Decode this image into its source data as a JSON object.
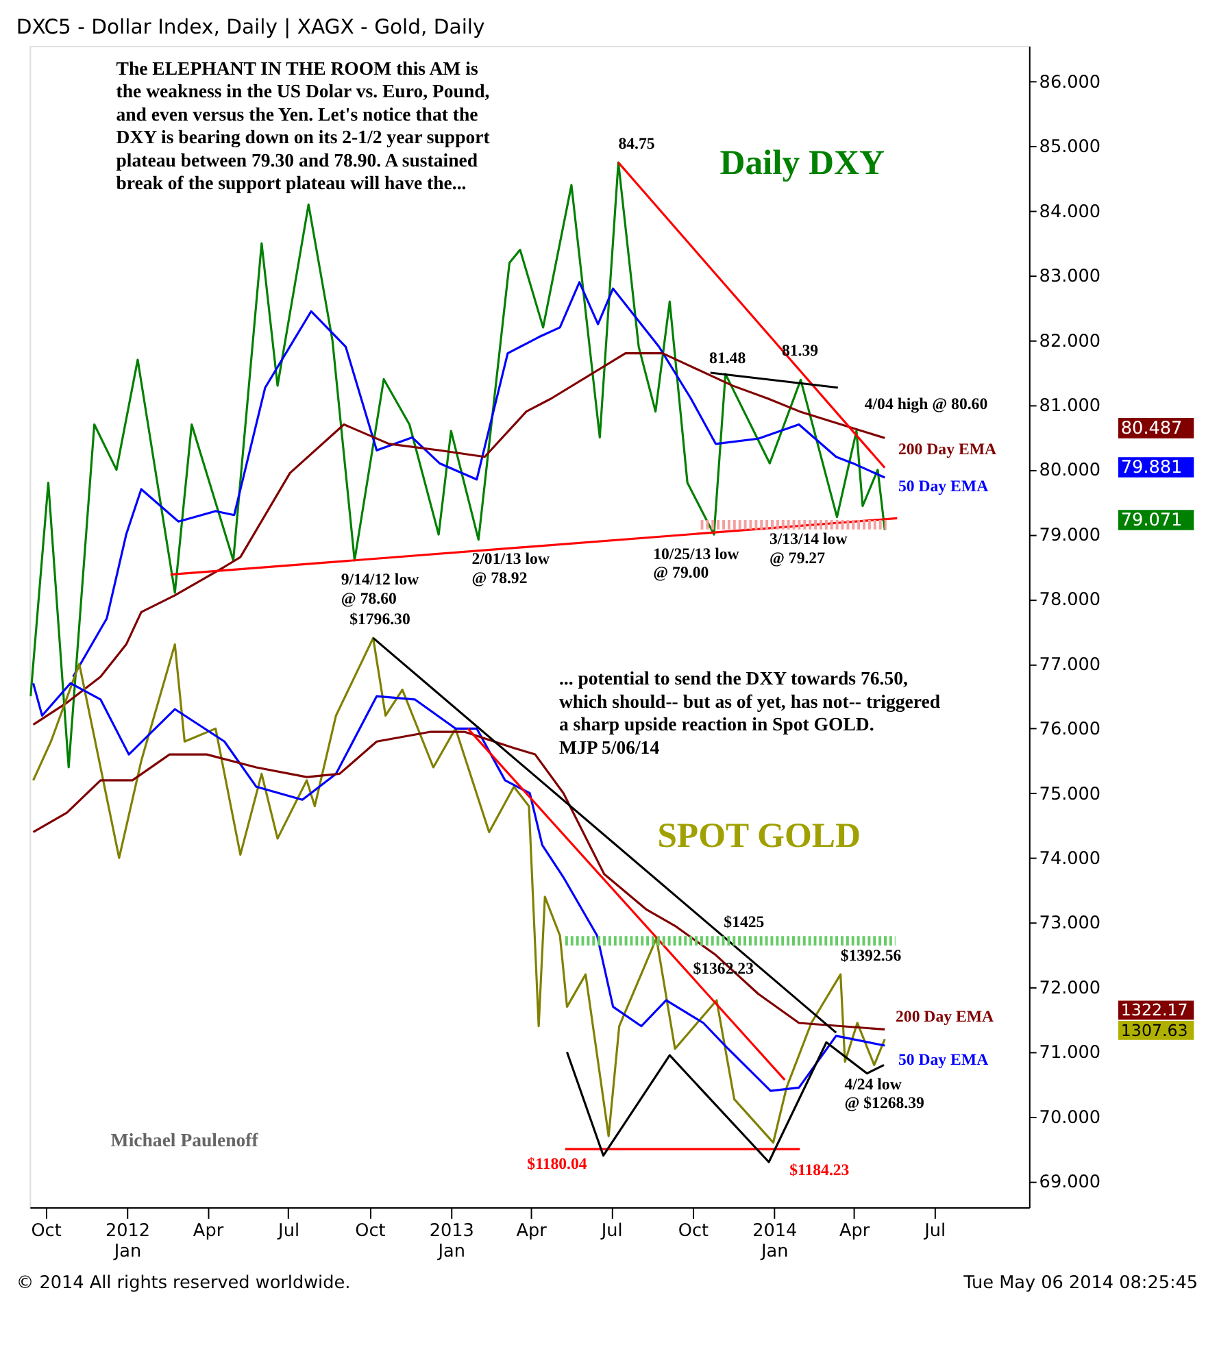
{
  "chart_data": {
    "type": "line",
    "title": "DXC5 - Dollar Index, Daily  |  XAGX - Gold, Daily",
    "xlim": [
      "2011-09-13",
      "2014-10-16"
    ],
    "xticks": [
      {
        "value": "2011-10-01",
        "label": "Oct"
      },
      {
        "value": "2012-01-01",
        "label": "2012\nJan"
      },
      {
        "value": "2012-04-01",
        "label": "Apr"
      },
      {
        "value": "2012-07-01",
        "label": "Jul"
      },
      {
        "value": "2012-10-01",
        "label": "Oct"
      },
      {
        "value": "2013-01-01",
        "label": "2013\nJan"
      },
      {
        "value": "2013-04-01",
        "label": "Apr"
      },
      {
        "value": "2013-07-01",
        "label": "Jul"
      },
      {
        "value": "2013-10-01",
        "label": "Oct"
      },
      {
        "value": "2014-01-01",
        "label": "2014\nJan"
      },
      {
        "value": "2014-04-01",
        "label": "Apr"
      },
      {
        "value": "2014-07-01",
        "label": "Jul"
      }
    ],
    "ylim": [
      68.6,
      86.55
    ],
    "yticks": [
      {
        "value": 69,
        "label": "69.000"
      },
      {
        "value": 70,
        "label": "70.000"
      },
      {
        "value": 71,
        "label": "71.000"
      },
      {
        "value": 72,
        "label": "72.000"
      },
      {
        "value": 73,
        "label": "73.000"
      },
      {
        "value": 74,
        "label": "74.000"
      },
      {
        "value": 75,
        "label": "75.000"
      },
      {
        "value": 76,
        "label": "76.000"
      },
      {
        "value": 77,
        "label": "77.000"
      },
      {
        "value": 78,
        "label": "78.000"
      },
      {
        "value": 79,
        "label": "79.000"
      },
      {
        "value": 80,
        "label": "80.000"
      },
      {
        "value": 81,
        "label": "81.000"
      },
      {
        "value": 82,
        "label": "82.000"
      },
      {
        "value": 83,
        "label": "83.000"
      },
      {
        "value": 84,
        "label": "84.000"
      },
      {
        "value": 85,
        "label": "85.000"
      },
      {
        "value": 86,
        "label": "86.000"
      }
    ],
    "grid": false,
    "series": [
      {
        "type": "line",
        "color": "#008000",
        "x": [
          "2011-09-14",
          "2011-10-04",
          "2011-10-27",
          "2011-11-25",
          "2011-12-20",
          "2012-01-13",
          "2012-02-24",
          "2012-03-14",
          "2012-04-30",
          "2012-06-01",
          "2012-06-19",
          "2012-07-24",
          "2012-08-20",
          "2012-09-14",
          "2012-10-17",
          "2012-11-15",
          "2012-12-18",
          "2013-01-01",
          "2013-02-01",
          "2013-03-08",
          "2013-03-20",
          "2013-04-15",
          "2013-05-17",
          "2013-06-18",
          "2013-07-09",
          "2013-08-01",
          "2013-08-20",
          "2013-09-05",
          "2013-09-25",
          "2013-10-25",
          "2013-11-07",
          "2013-12-27",
          "2014-01-31",
          "2014-03-13",
          "2014-04-04",
          "2014-04-11",
          "2014-04-28",
          "2014-05-06"
        ],
        "values": [
          76.5,
          79.8,
          75.4,
          80.7,
          80.0,
          81.7,
          78.1,
          80.7,
          78.6,
          83.5,
          81.3,
          84.1,
          82.0,
          78.6,
          81.4,
          80.7,
          79.0,
          80.6,
          78.92,
          83.2,
          83.4,
          82.2,
          84.4,
          80.5,
          84.75,
          81.9,
          80.9,
          82.6,
          79.8,
          79.0,
          81.48,
          80.1,
          81.39,
          79.27,
          80.6,
          79.44,
          80.0,
          79.07
        ]
      },
      {
        "type": "line",
        "color": "#0000ff",
        "x": [
          "2011-11-01",
          "2011-12-09",
          "2011-12-31",
          "2012-01-17",
          "2012-02-28",
          "2012-04-10",
          "2012-05-01",
          "2012-06-05",
          "2012-07-27",
          "2012-09-04",
          "2012-10-09",
          "2012-11-18",
          "2012-12-19",
          "2013-01-30",
          "2013-03-06",
          "2013-04-10",
          "2013-05-04",
          "2013-05-26",
          "2013-06-16",
          "2013-07-03",
          "2013-08-24",
          "2013-09-29",
          "2013-10-27",
          "2013-12-14",
          "2014-01-29",
          "2014-03-12",
          "2014-03-31",
          "2014-05-06"
        ],
        "values": [
          76.8,
          77.7,
          79.0,
          79.7,
          79.2,
          79.36,
          79.3,
          81.27,
          82.45,
          81.9,
          80.3,
          80.5,
          80.1,
          79.85,
          81.8,
          82.05,
          82.2,
          82.9,
          82.25,
          82.8,
          81.9,
          81.1,
          80.4,
          80.48,
          80.7,
          80.2,
          80.1,
          79.88
        ]
      },
      {
        "type": "line",
        "color": "#800000",
        "x": [
          "2011-09-17",
          "2011-10-25",
          "2011-12-02",
          "2011-12-31",
          "2012-01-17",
          "2012-02-24",
          "2012-04-20",
          "2012-05-08",
          "2012-07-03",
          "2012-09-02",
          "2012-10-23",
          "2012-12-19",
          "2013-02-08",
          "2013-03-27",
          "2013-04-24",
          "2013-07-17",
          "2013-08-28",
          "2013-11-15",
          "2013-12-25",
          "2014-01-30",
          "2014-05-06"
        ],
        "values": [
          76.06,
          76.4,
          76.8,
          77.3,
          77.8,
          78.06,
          78.5,
          78.65,
          79.95,
          80.7,
          80.4,
          80.3,
          80.2,
          80.9,
          81.1,
          81.8,
          81.8,
          81.3,
          81.1,
          80.9,
          80.49
        ]
      },
      {
        "type": "line",
        "color": "#808000",
        "x": [
          "2011-09-17",
          "2011-10-07",
          "2011-11-08",
          "2011-12-23",
          "2012-01-17",
          "2012-02-24",
          "2012-03-06",
          "2012-04-10",
          "2012-05-08",
          "2012-06-01",
          "2012-06-19",
          "2012-07-22",
          "2012-07-31",
          "2012-08-24",
          "2012-10-05",
          "2012-10-19",
          "2012-11-07",
          "2012-12-12",
          "2013-01-06",
          "2013-02-13",
          "2013-03-13",
          "2013-03-30",
          "2013-04-10",
          "2013-04-17",
          "2013-05-04",
          "2013-05-12",
          "2013-06-02",
          "2013-06-28",
          "2013-07-10",
          "2013-08-21",
          "2013-09-11",
          "2013-10-28",
          "2013-11-17",
          "2013-12-31",
          "2014-01-15",
          "2014-02-12",
          "2014-03-17",
          "2014-03-22",
          "2014-04-05",
          "2014-04-24",
          "2014-05-06"
        ],
        "values": [
          75.2,
          75.8,
          77.0,
          74.0,
          75.5,
          77.3,
          75.8,
          76.0,
          74.05,
          75.3,
          74.3,
          75.2,
          74.8,
          76.2,
          77.4,
          76.2,
          76.6,
          75.4,
          76.0,
          74.4,
          75.1,
          74.8,
          71.4,
          73.4,
          72.8,
          71.7,
          72.2,
          69.7,
          71.4,
          72.76,
          71.05,
          71.8,
          70.27,
          69.6,
          70.45,
          71.45,
          72.2,
          70.85,
          71.45,
          70.8,
          71.2
        ]
      },
      {
        "type": "line",
        "color": "#0000ff",
        "x": [
          "2011-09-17",
          "2011-09-27",
          "2011-10-29",
          "2011-12-02",
          "2012-01-03",
          "2012-02-24",
          "2012-04-20",
          "2012-05-26",
          "2012-07-17",
          "2012-08-24",
          "2012-10-09",
          "2012-11-21",
          "2013-01-06",
          "2013-01-30",
          "2013-03-03",
          "2013-03-31",
          "2013-04-14",
          "2013-05-08",
          "2013-06-15",
          "2013-07-03",
          "2013-08-04",
          "2013-09-01",
          "2013-10-13",
          "2013-11-10",
          "2013-12-28",
          "2014-01-29",
          "2014-03-12",
          "2014-05-06"
        ],
        "values": [
          76.7,
          76.2,
          76.7,
          76.45,
          75.6,
          76.3,
          75.8,
          75.1,
          74.9,
          75.3,
          76.5,
          76.45,
          76.0,
          76.0,
          75.2,
          75.0,
          74.2,
          73.7,
          72.8,
          71.7,
          71.4,
          71.8,
          71.45,
          71.05,
          70.4,
          70.45,
          71.25,
          71.1
        ]
      },
      {
        "type": "line",
        "color": "#800000",
        "x": [
          "2011-09-17",
          "2011-10-25",
          "2011-12-02",
          "2012-01-07",
          "2012-02-18",
          "2012-03-31",
          "2012-05-26",
          "2012-07-22",
          "2012-08-28",
          "2012-10-09",
          "2012-12-09",
          "2013-01-16",
          "2013-03-13",
          "2013-04-06",
          "2013-05-08",
          "2013-06-23",
          "2013-08-10",
          "2013-09-11",
          "2013-10-27",
          "2013-12-14",
          "2014-01-29",
          "2014-05-06"
        ],
        "values": [
          74.4,
          74.7,
          75.2,
          75.2,
          75.6,
          75.6,
          75.4,
          75.25,
          75.3,
          75.8,
          75.95,
          75.95,
          75.7,
          75.6,
          75.0,
          73.75,
          73.2,
          72.95,
          72.5,
          71.9,
          71.45,
          71.35
        ]
      },
      {
        "type": "line",
        "color": "#ff0000",
        "x": [
          "2012-02-19",
          "2014-05-20"
        ],
        "values": [
          78.38,
          79.25
        ]
      },
      {
        "type": "line",
        "color": "#ff0000",
        "x": [
          "2013-07-09",
          "2014-05-06"
        ],
        "values": [
          84.75,
          80.03
        ]
      },
      {
        "type": "line",
        "color": "#000000",
        "x": [
          "2013-10-21",
          "2014-03-14"
        ],
        "values": [
          81.5,
          81.27
        ]
      },
      {
        "type": "line",
        "color": "#000000",
        "x": [
          "2012-10-05",
          "2014-03-12"
        ],
        "values": [
          77.4,
          71.3
        ]
      },
      {
        "type": "line",
        "color": "#ff0000",
        "x": [
          "2013-01-20",
          "2014-01-13"
        ],
        "values": [
          76.0,
          70.57
        ]
      },
      {
        "type": "line",
        "color": "#ff0000",
        "x": [
          "2013-05-10",
          "2014-01-30"
        ],
        "values": [
          69.5,
          69.5
        ]
      },
      {
        "type": "line",
        "color": "#000000",
        "x": [
          "2013-05-12",
          "2013-06-22",
          "2013-09-05",
          "2013-12-26",
          "2014-03-01",
          "2014-04-16",
          "2014-05-05"
        ],
        "values": [
          71.0,
          69.4,
          70.95,
          69.3,
          71.15,
          70.67,
          70.8
        ]
      },
      {
        "type": "line",
        "color": "#f4a0a0",
        "line_style": "dotted",
        "x": [
          "2013-10-10",
          "2014-05-08"
        ],
        "values": [
          79.15,
          79.15
        ]
      },
      {
        "type": "line",
        "color": "#66cc66",
        "line_style": "dotted",
        "x": [
          "2013-05-10",
          "2014-05-18"
        ],
        "values": [
          72.72,
          72.72
        ]
      }
    ],
    "annotations": [
      "The ELEPHANT IN THE ROOM this AM is\nthe weakness in the US Dolar vs. Euro, Pound,\nand even versus the Yen. Let's notice that the\nDXY is bearing down on its 2-1/2 year support\nplateau between 79.30 and 78.90. A sustained\nbreak of the support plateau will have the...",
      "Daily DXY",
      "... potential to send the DXY towards 76.50,\nwhich should-- but as of yet, has not-- triggered\na sharp upside reaction in Spot GOLD.\nMJP  5/06/14",
      "SPOT GOLD",
      "Michael Paulenoff",
      "© 2014 All rights reserved worldwide.",
      "Tue May 06 2014 08:25:45",
      {
        "text": "84.75",
        "x": "2013-07-09",
        "y": 84.75
      },
      {
        "text": "81.48",
        "x": "2013-11-07",
        "y": 81.48
      },
      {
        "text": "81.39",
        "x": "2014-01-31",
        "y": 81.39
      },
      {
        "text": "4/04 high @ 80.60",
        "x": "2014-04-04",
        "y": 80.6
      },
      {
        "text": "200 Day EMA",
        "x": "2014-05-06",
        "y": 80.49
      },
      {
        "text": "50 Day EMA",
        "x": "2014-05-06",
        "y": 79.88
      },
      {
        "text": "9/14/12 low\n@ 78.60",
        "x": "2012-09-14",
        "y": 78.6
      },
      {
        "text": "2/01/13 low\n@ 78.92",
        "x": "2013-02-01",
        "y": 78.92
      },
      {
        "text": "10/25/13 low\n@ 79.00",
        "x": "2013-10-25",
        "y": 79.0
      },
      {
        "text": "3/13/14 low\n@ 79.27",
        "x": "2014-03-13",
        "y": 79.27
      },
      {
        "text": "$1796.30",
        "x": "2012-10-05",
        "y": 77.4
      },
      {
        "text": "$1425",
        "x": "2013-11-28",
        "y": 72.72
      },
      {
        "text": "$1362.23",
        "x": "2013-10-28",
        "y": 71.8
      },
      {
        "text": "$1392.56",
        "x": "2014-03-17",
        "y": 72.2
      },
      {
        "text": "$1180.04",
        "x": "2013-06-28",
        "y": 69.7
      },
      {
        "text": "$1184.23",
        "x": "2013-12-31",
        "y": 69.6
      },
      {
        "text": "4/24 low\n@ $1268.39",
        "x": "2014-04-24",
        "y": 70.8
      },
      {
        "text": "200 Day EMA",
        "x": "2014-05-06",
        "y": 71.35
      },
      {
        "text": "50 Day EMA",
        "x": "2014-05-06",
        "y": 71.1
      },
      "80.487",
      "79.881",
      "79.071",
      "1322.17",
      "1307.63"
    ]
  }
}
